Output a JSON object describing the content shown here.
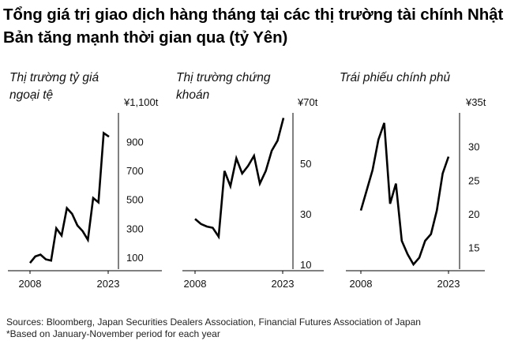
{
  "headline": "Tổng giá trị giao dịch hàng tháng tại các thị trường tài chính Nhật Bản tăng mạnh thời gian qua (tỷ Yên)",
  "footer": {
    "sources": "Sources: Bloomberg, Japan Securities Dealers Association, Financial Futures Association of Japan",
    "note": "*Based on January-November period for each year"
  },
  "chart_data": [
    {
      "type": "line",
      "title_lines": [
        "Thị trường tỷ giá",
        "ngoại tệ"
      ],
      "x": [
        2008,
        2009,
        2010,
        2011,
        2012,
        2013,
        2014,
        2015,
        2016,
        2017,
        2018,
        2019,
        2020,
        2021,
        2022,
        2023
      ],
      "series": [
        {
          "values": [
            60,
            105,
            118,
            85,
            76,
            300,
            250,
            440,
            400,
            320,
            280,
            220,
            510,
            480,
            960,
            935
          ]
        }
      ],
      "xlim": [
        2008,
        2023
      ],
      "ylim": [
        50,
        1100
      ],
      "x_ticks": [
        "2008",
        "2023"
      ],
      "y_tick_values": [
        100,
        300,
        500,
        700,
        900
      ],
      "y_tick_labels": [
        "100",
        "300",
        "500",
        "700",
        "900"
      ],
      "top_label": "¥1,100t",
      "color": "#000000"
    },
    {
      "type": "line",
      "title_lines": [
        "Thị trường chứng",
        "khoán"
      ],
      "x": [
        2008,
        2009,
        2010,
        2011,
        2012,
        2013,
        2014,
        2015,
        2016,
        2017,
        2018,
        2019,
        2020,
        2021,
        2022,
        2023
      ],
      "series": [
        {
          "values": [
            28,
            26,
            25,
            24.5,
            21,
            47,
            41,
            52,
            46,
            49,
            53,
            42,
            47,
            55,
            59,
            68
          ]
        }
      ],
      "xlim": [
        2008,
        2023
      ],
      "ylim": [
        10,
        70
      ],
      "x_ticks": [
        "2008",
        "2023"
      ],
      "y_tick_values": [
        10,
        30,
        50
      ],
      "y_tick_labels": [
        "10",
        "30",
        "50"
      ],
      "top_label": "¥70t",
      "color": "#000000"
    },
    {
      "type": "line",
      "title_lines": [
        "Trái phiếu chính phủ"
      ],
      "x": [
        2008,
        2009,
        2010,
        2011,
        2012,
        2013,
        2014,
        2015,
        2016,
        2017,
        2018,
        2019,
        2020,
        2021,
        2022,
        2023
      ],
      "series": [
        {
          "values": [
            20.5,
            23.5,
            26.5,
            31,
            33.5,
            21.5,
            24.5,
            16,
            14,
            12.5,
            13.5,
            16,
            17,
            20.5,
            26,
            28.5
          ]
        }
      ],
      "xlim": [
        2008,
        2023
      ],
      "ylim": [
        12.5,
        35
      ],
      "x_ticks": [
        "2008",
        "2023"
      ],
      "y_tick_values": [
        15,
        20,
        25,
        30
      ],
      "y_tick_labels": [
        "15",
        "20",
        "25",
        "30"
      ],
      "top_label": "¥35t",
      "color": "#000000"
    }
  ]
}
